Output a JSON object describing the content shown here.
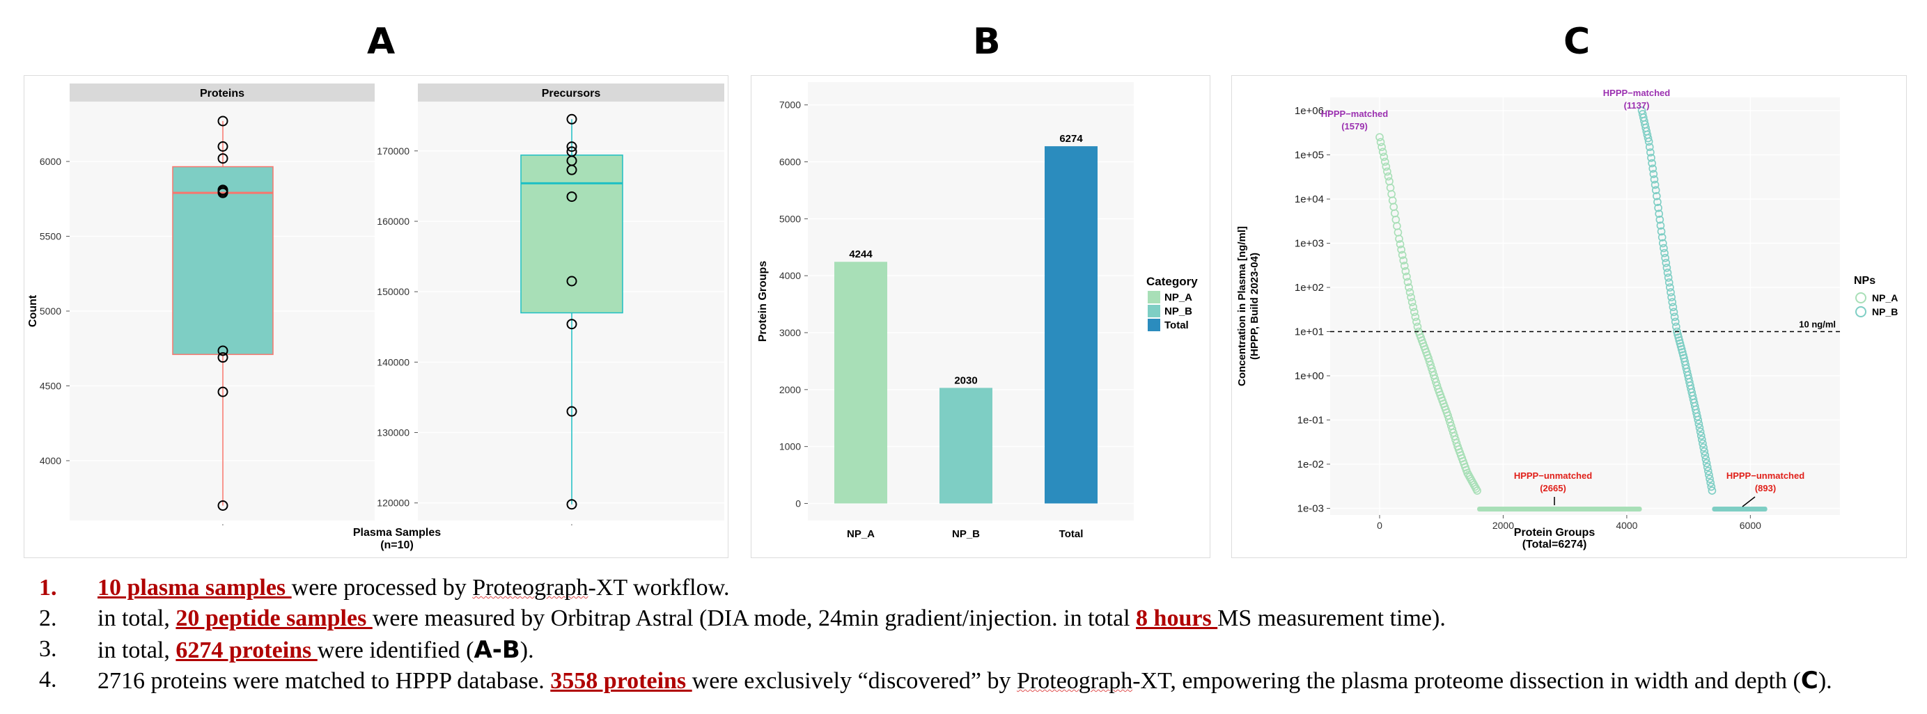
{
  "panels": {
    "a": "A",
    "b": "B",
    "c": "C"
  },
  "chart_data": [
    {
      "type": "box",
      "panel": "A",
      "facet_title": "Proteins",
      "xlabel": "Plasma Samples\n(n=10)",
      "ylabel": "Count",
      "ylim": [
        3600,
        6400
      ],
      "yticks": [
        4000,
        4500,
        5000,
        5500,
        6000
      ],
      "fill": "#7ecec4",
      "line_color": "#f8766d",
      "box": {
        "min": 3700,
        "q1": 4710,
        "median": 5790,
        "q3": 5965,
        "max": 6270
      },
      "points": [
        3700,
        4460,
        4690,
        4735,
        5790,
        5800,
        5810,
        6020,
        6100,
        6270
      ]
    },
    {
      "type": "box",
      "panel": "A",
      "facet_title": "Precursors",
      "ylim": [
        117500,
        177000
      ],
      "yticks": [
        120000,
        130000,
        140000,
        150000,
        160000,
        170000
      ],
      "fill": "#a8dfb7",
      "line_color": "#1dbfc4",
      "box": {
        "min": 119800,
        "q1": 147000,
        "median": 165400,
        "q3": 169400,
        "max": 174500
      },
      "points": [
        119800,
        133000,
        145400,
        151500,
        163500,
        167300,
        168600,
        169900,
        170600,
        174500
      ]
    },
    {
      "type": "bar",
      "panel": "B",
      "categories": [
        "NP_A",
        "NP_B",
        "Total"
      ],
      "values": [
        4244,
        2030,
        6274
      ],
      "colors": [
        "#a8dfb7",
        "#7ecec4",
        "#2b8cbe"
      ],
      "ylabel": "Protein Groups",
      "ylim": [
        -300,
        7400
      ],
      "yticks": [
        0,
        1000,
        2000,
        3000,
        4000,
        5000,
        6000,
        7000
      ],
      "legend": {
        "title": "Category",
        "entries": [
          "NP_A",
          "NP_B",
          "Total"
        ],
        "placement": "right"
      }
    },
    {
      "type": "scatter",
      "panel": "C",
      "xlabel": "Protein Groups\n(Total=6274)",
      "ylabel": "Concentration in Plasma [ng/ml]\n(HPPP, Build 2023-04)",
      "xlim": [
        -800,
        7450
      ],
      "xticks": [
        0,
        2000,
        4000,
        6000
      ],
      "y_scale": "log10",
      "ylim_log10": [
        -3.15,
        6.3
      ],
      "ytick_labels": [
        "1e-03",
        "1e-02",
        "1e-01",
        "1e+00",
        "1e+01",
        "1e+02",
        "1e+03",
        "1e+04",
        "1e+05",
        "1e+06"
      ],
      "hline": {
        "value": 10,
        "label": "10 ng/ml"
      },
      "legend": {
        "title": "NPs",
        "entries": [
          "NP_A",
          "NP_B"
        ],
        "placement": "right"
      },
      "series": [
        {
          "name": "NP_A",
          "color": "#a8dfb7",
          "x_start": 0,
          "x_end": 1579,
          "log10_y": [
            5.4,
            4.4,
            3.1,
            2.0,
            1.0,
            0.4,
            -0.3,
            -0.9,
            -1.6,
            -2.2,
            -2.6
          ],
          "unmatched_x": [
            1579,
            4244
          ]
        },
        {
          "name": "NP_B",
          "color": "#7ecec4",
          "x_start": 4244,
          "x_end": 5381,
          "log10_y": [
            6.0,
            5.3,
            4.2,
            3.0,
            2.0,
            1.0,
            0.4,
            -0.3,
            -1.0,
            -1.8,
            -2.6
          ],
          "unmatched_x": [
            5381,
            6274
          ]
        }
      ],
      "annotations": [
        {
          "label": "HPPP−matched",
          "value": "(1579)",
          "color": "#9b30b0"
        },
        {
          "label": "HPPP−matched",
          "value": "(1137)",
          "color": "#9b30b0"
        },
        {
          "label": "HPPP−unmatched",
          "value": "(2665)",
          "color": "#e0201a"
        },
        {
          "label": "HPPP−unmatched",
          "value": "(893)",
          "color": "#e0201a"
        }
      ]
    }
  ],
  "bullets": [
    {
      "num": "1.",
      "segments": [
        {
          "t": "10 plasma samples ",
          "s": "hl"
        },
        {
          "t": "were processed by ",
          "s": ""
        },
        {
          "t": "Proteograph",
          "s": "sq"
        },
        {
          "t": "-XT workflow.",
          "s": ""
        }
      ]
    },
    {
      "num": "2.",
      "segments": [
        {
          "t": "in total, ",
          "s": ""
        },
        {
          "t": "20 peptide samples ",
          "s": "hl"
        },
        {
          "t": "were measured by Orbitrap Astral (DIA mode, 24min gradient/injection. in total ",
          "s": ""
        },
        {
          "t": "8 hours ",
          "s": "hl"
        },
        {
          "t": "MS measurement time).",
          "s": ""
        }
      ]
    },
    {
      "num": "3.",
      "segments": [
        {
          "t": "in total, ",
          "s": ""
        },
        {
          "t": "6274 proteins ",
          "s": "hl"
        },
        {
          "t": "were identified (",
          "s": ""
        },
        {
          "t": "A-B",
          "s": "sansb"
        },
        {
          "t": ").",
          "s": ""
        }
      ]
    },
    {
      "num": "4.",
      "segments": [
        {
          "t": "2716 proteins were matched to HPPP database. ",
          "s": ""
        },
        {
          "t": "3558 proteins ",
          "s": "hl"
        },
        {
          "t": "were exclusively “discovered” by ",
          "s": ""
        },
        {
          "t": "Proteograph",
          "s": "sq"
        },
        {
          "t": "-XT, empowering the plasma proteome dissection in width and depth (",
          "s": ""
        },
        {
          "t": "C",
          "s": "sansb"
        },
        {
          "t": ").",
          "s": ""
        }
      ]
    }
  ]
}
